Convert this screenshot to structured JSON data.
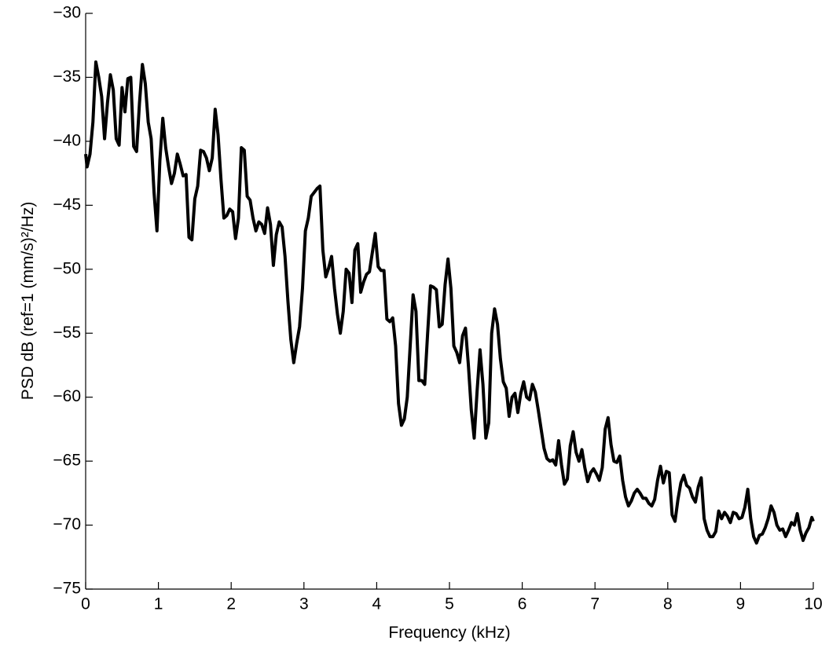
{
  "chart_data": {
    "type": "line",
    "xlabel": "Frequency (kHz)",
    "ylabel": "PSD dB (ref=1 (mm/s)²/Hz)",
    "xlim": [
      0,
      10
    ],
    "ylim": [
      -75,
      -30
    ],
    "xticks": [
      0,
      1,
      2,
      3,
      4,
      5,
      6,
      7,
      8,
      9,
      10
    ],
    "yticks": [
      {
        "value": -75,
        "label": "−75"
      },
      {
        "value": -70,
        "label": "−70"
      },
      {
        "value": -65,
        "label": "−65"
      },
      {
        "value": -60,
        "label": "−60"
      },
      {
        "value": -55,
        "label": "−55"
      },
      {
        "value": -50,
        "label": "−50"
      },
      {
        "value": -45,
        "label": "−45"
      },
      {
        "value": -40,
        "label": "−40"
      },
      {
        "value": -35,
        "label": "−35"
      },
      {
        "value": -30,
        "label": "−30"
      }
    ],
    "grid": false,
    "x": [
      0,
      0.02,
      0.06,
      0.1,
      0.14,
      0.18,
      0.22,
      0.26,
      0.3,
      0.34,
      0.38,
      0.42,
      0.46,
      0.5,
      0.54,
      0.58,
      0.62,
      0.66,
      0.7,
      0.74,
      0.78,
      0.82,
      0.86,
      0.9,
      0.94,
      0.98,
      1.02,
      1.06,
      1.1,
      1.14,
      1.18,
      1.22,
      1.26,
      1.3,
      1.34,
      1.38,
      1.42,
      1.46,
      1.5,
      1.54,
      1.58,
      1.62,
      1.66,
      1.7,
      1.74,
      1.78,
      1.82,
      1.86,
      1.9,
      1.94,
      1.98,
      2.02,
      2.06,
      2.1,
      2.14,
      2.18,
      2.22,
      2.26,
      2.3,
      2.34,
      2.38,
      2.42,
      2.46,
      2.5,
      2.54,
      2.58,
      2.62,
      2.66,
      2.7,
      2.74,
      2.78,
      2.82,
      2.86,
      2.9,
      2.94,
      2.98,
      3.02,
      3.06,
      3.1,
      3.14,
      3.18,
      3.22,
      3.26,
      3.3,
      3.34,
      3.38,
      3.42,
      3.46,
      3.5,
      3.54,
      3.58,
      3.62,
      3.66,
      3.7,
      3.74,
      3.78,
      3.82,
      3.86,
      3.9,
      3.94,
      3.98,
      4.02,
      4.06,
      4.1,
      4.14,
      4.18,
      4.22,
      4.26,
      4.3,
      4.34,
      4.38,
      4.42,
      4.46,
      4.5,
      4.54,
      4.58,
      4.62,
      4.66,
      4.7,
      4.74,
      4.78,
      4.82,
      4.86,
      4.9,
      4.94,
      4.98,
      5.02,
      5.06,
      5.1,
      5.14,
      5.18,
      5.22,
      5.26,
      5.3,
      5.34,
      5.38,
      5.42,
      5.46,
      5.5,
      5.54,
      5.58,
      5.62,
      5.66,
      5.7,
      5.74,
      5.78,
      5.82,
      5.86,
      5.9,
      5.94,
      5.98,
      6.02,
      6.06,
      6.1,
      6.14,
      6.18,
      6.22,
      6.26,
      6.3,
      6.34,
      6.38,
      6.42,
      6.46,
      6.5,
      6.54,
      6.58,
      6.62,
      6.66,
      6.7,
      6.74,
      6.78,
      6.82,
      6.86,
      6.9,
      6.94,
      6.98,
      7.02,
      7.06,
      7.1,
      7.14,
      7.18,
      7.22,
      7.26,
      7.3,
      7.34,
      7.38,
      7.42,
      7.46,
      7.5,
      7.54,
      7.58,
      7.62,
      7.66,
      7.7,
      7.74,
      7.78,
      7.82,
      7.86,
      7.9,
      7.94,
      7.98,
      8.02,
      8.06,
      8.1,
      8.14,
      8.18,
      8.22,
      8.26,
      8.3,
      8.34,
      8.38,
      8.42,
      8.46,
      8.5,
      8.54,
      8.58,
      8.62,
      8.66,
      8.7,
      8.74,
      8.78,
      8.82,
      8.86,
      8.9,
      8.94,
      8.98,
      9.02,
      9.06,
      9.1,
      9.14,
      9.18,
      9.22,
      9.26,
      9.3,
      9.34,
      9.38,
      9.42,
      9.46,
      9.5,
      9.54,
      9.58,
      9.62,
      9.66,
      9.7,
      9.74,
      9.78,
      9.82,
      9.86,
      9.9,
      9.94,
      9.98,
      10
    ],
    "series": [
      {
        "color": "#000000",
        "values": [
          -41,
          -42,
          -41,
          -38.5,
          -33.8,
          -35,
          -36.5,
          -39.8,
          -37,
          -34.8,
          -36,
          -39.8,
          -40.3,
          -35.8,
          -37.7,
          -35.1,
          -35,
          -40.4,
          -40.8,
          -37,
          -34,
          -35.5,
          -38.5,
          -39.8,
          -44,
          -47,
          -41.5,
          -38.2,
          -40.5,
          -42,
          -43.3,
          -42.5,
          -41,
          -41.8,
          -42.7,
          -42.6,
          -47.5,
          -47.7,
          -44.5,
          -43.5,
          -40.7,
          -40.8,
          -41.3,
          -42.3,
          -41.3,
          -37.5,
          -39.5,
          -43,
          -46,
          -45.8,
          -45.3,
          -45.5,
          -47.6,
          -46,
          -40.5,
          -40.7,
          -44.3,
          -44.6,
          -46,
          -47,
          -46.3,
          -46.5,
          -47.2,
          -45.2,
          -46.5,
          -49.7,
          -47.3,
          -46.3,
          -46.7,
          -49,
          -52.5,
          -55.5,
          -57.3,
          -55.8,
          -54.5,
          -51.5,
          -47,
          -46,
          -44.3,
          -44,
          -43.7,
          -43.5,
          -48.5,
          -50.6,
          -49.9,
          -49,
          -51.5,
          -53.5,
          -55,
          -53.3,
          -50,
          -50.3,
          -52.6,
          -48.5,
          -48,
          -51.8,
          -51,
          -50.4,
          -50.2,
          -48.7,
          -47.2,
          -49.8,
          -50.1,
          -50.1,
          -53.9,
          -54.1,
          -53.8,
          -56,
          -60.5,
          -62.2,
          -61.7,
          -60,
          -56,
          -52,
          -53.3,
          -58.7,
          -58.7,
          -59,
          -55,
          -51.3,
          -51.4,
          -51.6,
          -54.5,
          -54.3,
          -51.2,
          -49.2,
          -51.5,
          -56,
          -56.5,
          -57.3,
          -55.2,
          -54.6,
          -57.5,
          -61,
          -63.2,
          -59.5,
          -56.3,
          -59,
          -63.2,
          -62,
          -55,
          -53.1,
          -54.3,
          -57,
          -58.8,
          -59.3,
          -61.5,
          -60,
          -59.7,
          -61.2,
          -59.7,
          -58.8,
          -60,
          -60.2,
          -59,
          -59.6,
          -61,
          -62.5,
          -64,
          -64.8,
          -65,
          -64.9,
          -65.3,
          -63.4,
          -65.3,
          -66.8,
          -66.4,
          -63.8,
          -62.7,
          -64.3,
          -65,
          -64.1,
          -65.5,
          -66.6,
          -65.9,
          -65.6,
          -66,
          -66.5,
          -65.5,
          -62.5,
          -61.6,
          -63.7,
          -65,
          -65.1,
          -64.6,
          -66.5,
          -67.8,
          -68.5,
          -68.1,
          -67.5,
          -67.2,
          -67.5,
          -67.9,
          -67.9,
          -68.3,
          -68.5,
          -68,
          -66.5,
          -65.4,
          -66.7,
          -65.8,
          -65.9,
          -69.2,
          -69.7,
          -68,
          -66.7,
          -66.1,
          -66.9,
          -67.1,
          -67.8,
          -68.2,
          -67,
          -66.3,
          -69.5,
          -70.4,
          -70.9,
          -70.9,
          -70.5,
          -68.9,
          -69.5,
          -69,
          -69.3,
          -69.8,
          -69,
          -69.1,
          -69.5,
          -69.4,
          -68.6,
          -67.2,
          -69.5,
          -70.9,
          -71.4,
          -70.8,
          -70.7,
          -70.2,
          -69.5,
          -68.5,
          -69,
          -70,
          -70.4,
          -70.3,
          -70.9,
          -70.4,
          -69.8,
          -70,
          -69.1,
          -70.4,
          -71.2,
          -70.6,
          -70.2,
          -69.4,
          -69.7
        ]
      }
    ]
  }
}
